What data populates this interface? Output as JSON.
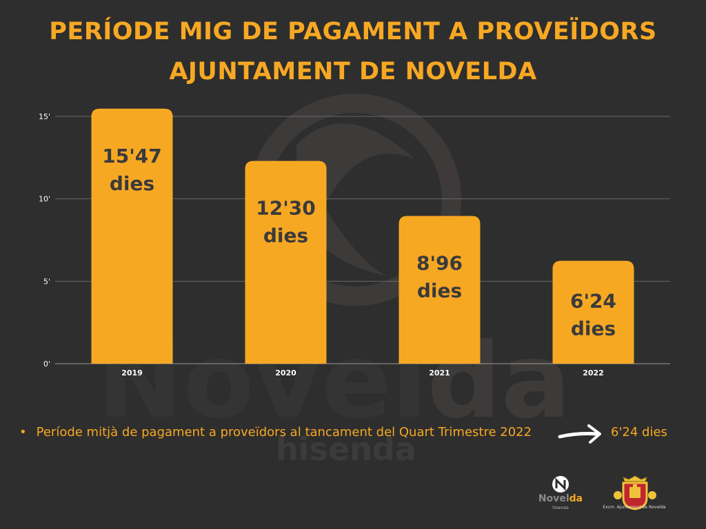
{
  "header": {
    "title_line1": "PERÍODE MIG DE PAGAMENT A PROVEÏDORS",
    "title_line2": "AJUNTAMENT DE NOVELDA"
  },
  "colors": {
    "background": "#2e2e2e",
    "accent": "#f7a823",
    "bar_label": "#3a3a3a",
    "axis_text": "#ffffff"
  },
  "chart_data": {
    "type": "bar",
    "categories": [
      "2019",
      "2020",
      "2021",
      "2022"
    ],
    "values": [
      15.47,
      12.3,
      8.96,
      6.24
    ],
    "data_labels": [
      [
        "15'47",
        "dies"
      ],
      [
        "12'30",
        "dies"
      ],
      [
        "8'96",
        "dies"
      ],
      [
        "6'24",
        "dies"
      ]
    ],
    "yticks": [
      {
        "value": 0,
        "label": "0'"
      },
      {
        "value": 5,
        "label": "5'"
      },
      {
        "value": 10,
        "label": "10'"
      },
      {
        "value": 15,
        "label": "15'"
      }
    ],
    "ylim": [
      0,
      15
    ],
    "grid": true,
    "legend": "none"
  },
  "note": {
    "text": "Període mitjà de pagament a proveïdors al tancament del Quart Trimestre 2022",
    "value": "6'24 dies"
  },
  "logos": {
    "novelda_text_a": "Novel",
    "novelda_text_b": "da",
    "novelda_sub": "hisenda",
    "watermark_a": "Novel",
    "watermark_b": "da",
    "watermark_sub": "hisenda",
    "crest_caption": "Excm. Ajuntament de Novelda",
    "crest_icon": "coat-of-arms-icon",
    "novelda_icon": "novelda-n-icon"
  }
}
